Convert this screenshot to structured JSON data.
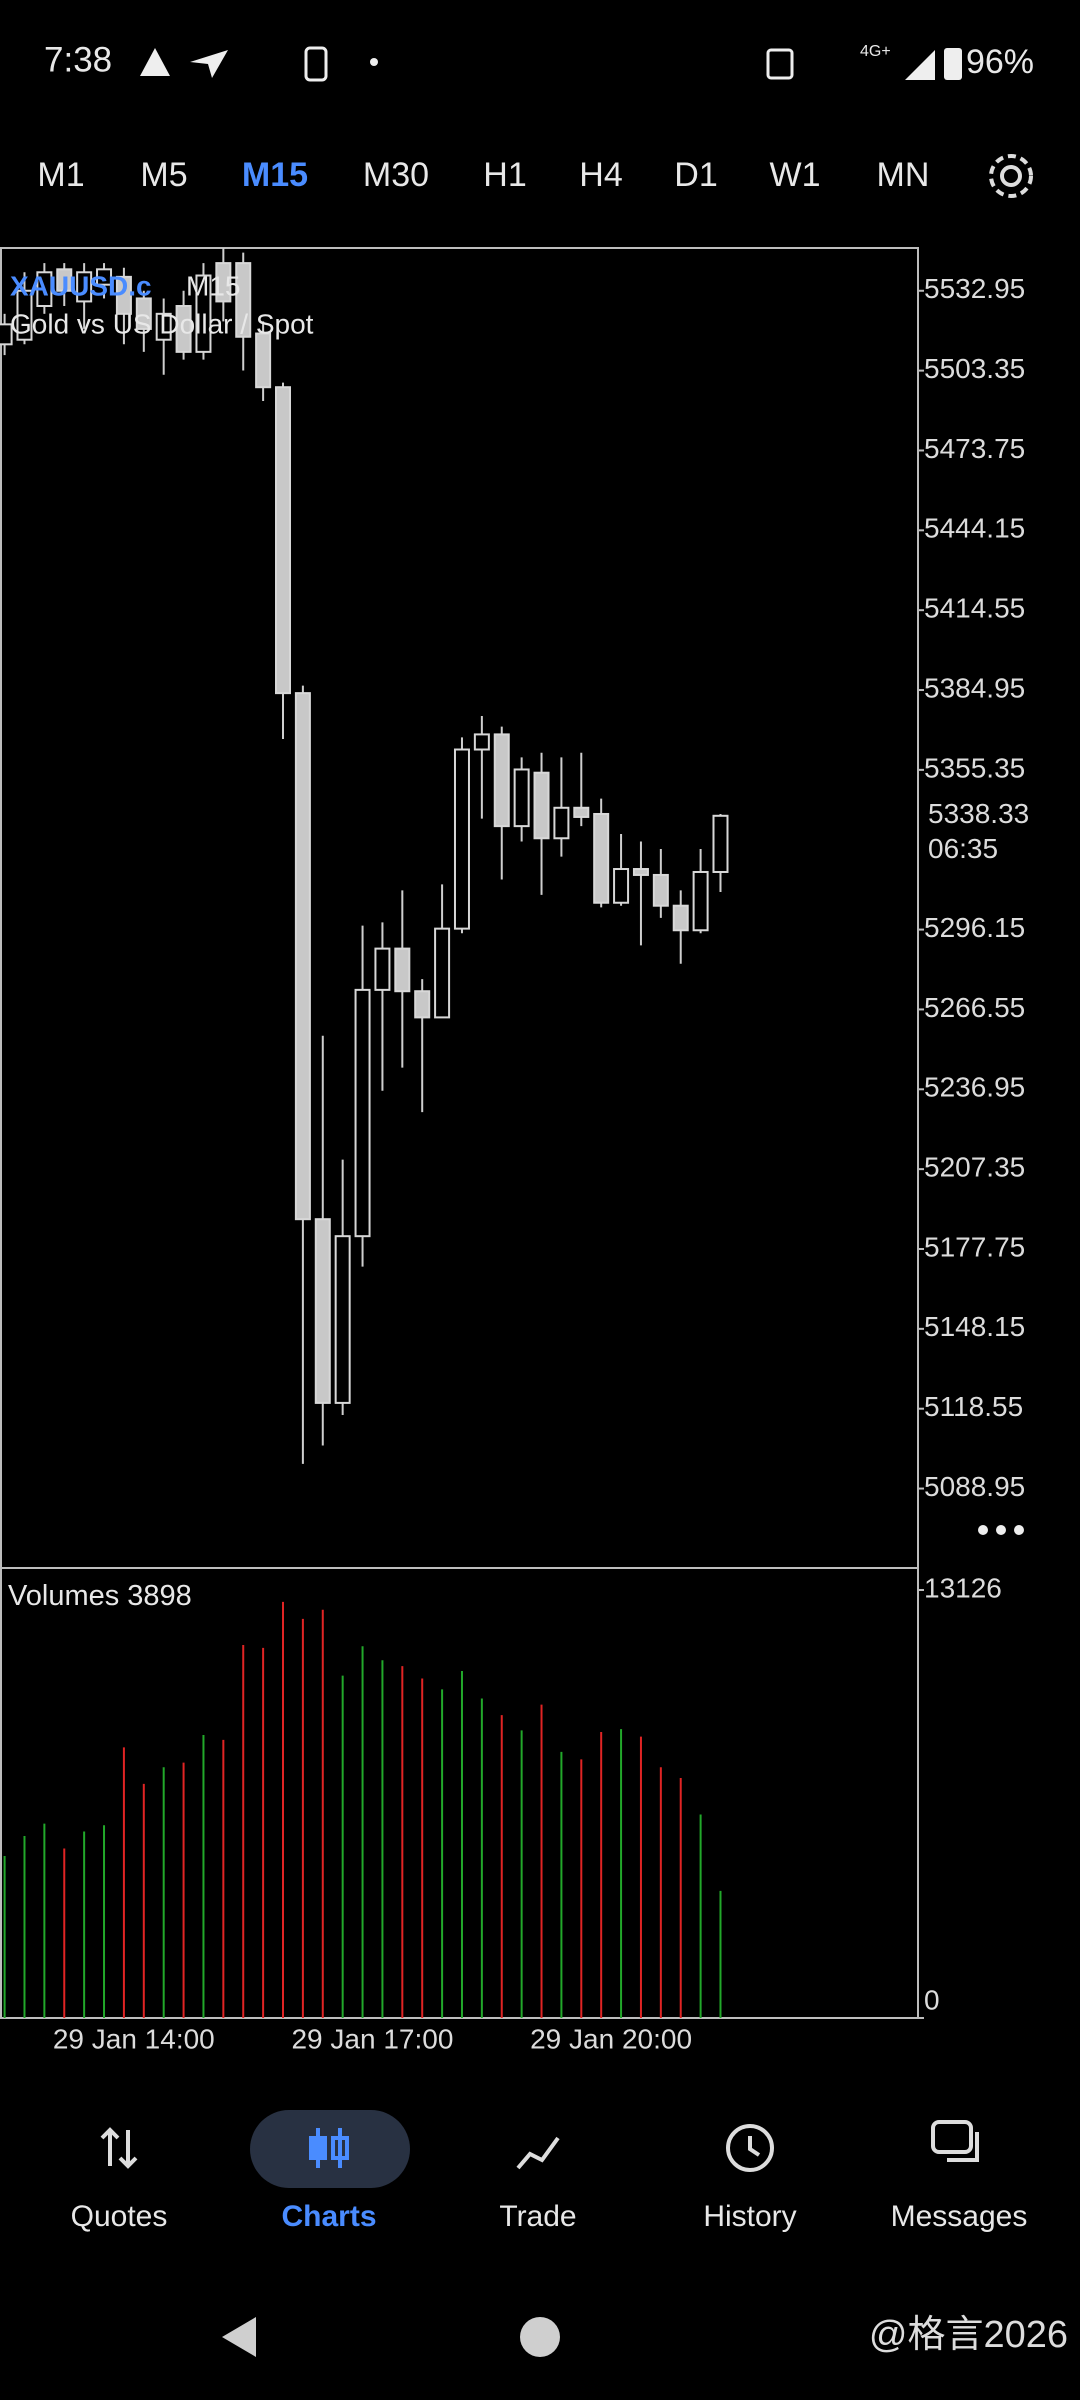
{
  "status_bar": {
    "time": "7:38",
    "network": "4G+",
    "battery": "96%"
  },
  "timeframes": {
    "items": [
      "M1",
      "M5",
      "M15",
      "M30",
      "H1",
      "H4",
      "D1",
      "W1",
      "MN"
    ],
    "active": 2
  },
  "chart": {
    "type": "candlestick",
    "symbol": "XAUUSD.c",
    "timeframe": "M15",
    "description": "Gold vs US Dollar / Spot",
    "categories": [
      null,
      null,
      null,
      null,
      null,
      null,
      null,
      "29 Jan 14:00",
      null,
      null,
      null,
      null,
      null,
      null,
      null,
      null,
      null,
      null,
      null,
      "29 Jan 17:00",
      null,
      null,
      null,
      null,
      null,
      null,
      null,
      null,
      null,
      null,
      null,
      "29 Jan 20:00",
      null,
      null,
      null,
      null,
      null
    ],
    "open": [
      5513.1,
      5514.8,
      5527.3,
      5540.9,
      5529.0,
      5535.2,
      5538.1,
      5530.1,
      5514.8,
      5527.3,
      5510.3,
      5543.2,
      5543.2,
      5517.1,
      5497.2,
      5383.8,
      5188.8,
      5120.7,
      5182.5,
      5273.8,
      5289.1,
      5273.3,
      5263.6,
      5296.5,
      5362.9,
      5368.5,
      5334.5,
      5354.3,
      5330.0,
      5341.3,
      5339.0,
      5306.1,
      5318.6,
      5316.4,
      5305.0,
      5295.9,
      5317.5
    ],
    "high": [
      5524.4,
      5539.8,
      5543.2,
      5543.2,
      5543.2,
      5543.2,
      5541.5,
      5532.95,
      5530.1,
      5532.95,
      5543.2,
      5548.8,
      5547.1,
      5521.6,
      5498.9,
      5386.6,
      5256.8,
      5210.9,
      5297.6,
      5298.8,
      5310.7,
      5277.8,
      5312.9,
      5367.4,
      5375.3,
      5371.4,
      5360.0,
      5361.7,
      5360.0,
      5361.7,
      5344.7,
      5331.6,
      5328.8,
      5326.0,
      5310.7,
      5326.0,
      5339.0
    ],
    "low": [
      5509.1,
      5513.1,
      5524.4,
      5527.3,
      5518.8,
      5530.1,
      5513.1,
      5510.3,
      5501.8,
      5507.4,
      5507.4,
      5521.6,
      5503.4,
      5492.1,
      5366.8,
      5098.1,
      5104.9,
      5116.2,
      5171.2,
      5236.4,
      5245.0,
      5228.5,
      5263.6,
      5294.8,
      5337.3,
      5314.7,
      5328.8,
      5309.0,
      5323.2,
      5334.5,
      5304.4,
      5305.0,
      5290.3,
      5300.5,
      5283.5,
      5294.8,
      5310.1
    ],
    "close": [
      5520.5,
      5532.95,
      5539.8,
      5532.95,
      5539.8,
      5540.9,
      5524.4,
      5518.8,
      5524.4,
      5510.3,
      5538.6,
      5529.0,
      5515.9,
      5497.2,
      5383.8,
      5188.8,
      5120.7,
      5182.5,
      5273.8,
      5289.1,
      5273.3,
      5263.6,
      5296.5,
      5362.9,
      5368.5,
      5334.5,
      5355.5,
      5330.0,
      5341.3,
      5337.9,
      5306.1,
      5318.6,
      5316.4,
      5305.0,
      5295.9,
      5317.5,
      5338.33
    ],
    "countdown": "06:35",
    "ylim": [
      5059.5,
      5548.8
    ],
    "yticks": [
      5532.95,
      5503.35,
      5473.75,
      5444.15,
      5414.55,
      5384.95,
      5355.35,
      5296.15,
      5266.55,
      5236.95,
      5207.35,
      5177.75,
      5148.15,
      5118.55,
      5088.95
    ],
    "bull_color": "#000000",
    "bear_color": "#c8c8c8",
    "volume": {
      "title": "Volumes",
      "values": [
        4970,
        5580,
        5960,
        5200,
        5720,
        5910,
        8300,
        7180,
        7690,
        7830,
        8680,
        8530,
        11440,
        11350,
        12760,
        12240,
        12520,
        10500,
        11400,
        10970,
        10790,
        10410,
        10080,
        10640,
        9800,
        9290,
        8820,
        9610,
        8160,
        7930,
        8770,
        8860,
        8630,
        7690,
        7360,
        6240,
        3898
      ],
      "ylim": [
        0,
        13126
      ],
      "yticks": [
        13126,
        0
      ],
      "up_color": "#22a82a",
      "down_color": "#e02424"
    }
  },
  "nav": {
    "items": [
      "Quotes",
      "Charts",
      "Trade",
      "History",
      "Messages"
    ],
    "active": 1
  },
  "watermark": "@格言2026"
}
